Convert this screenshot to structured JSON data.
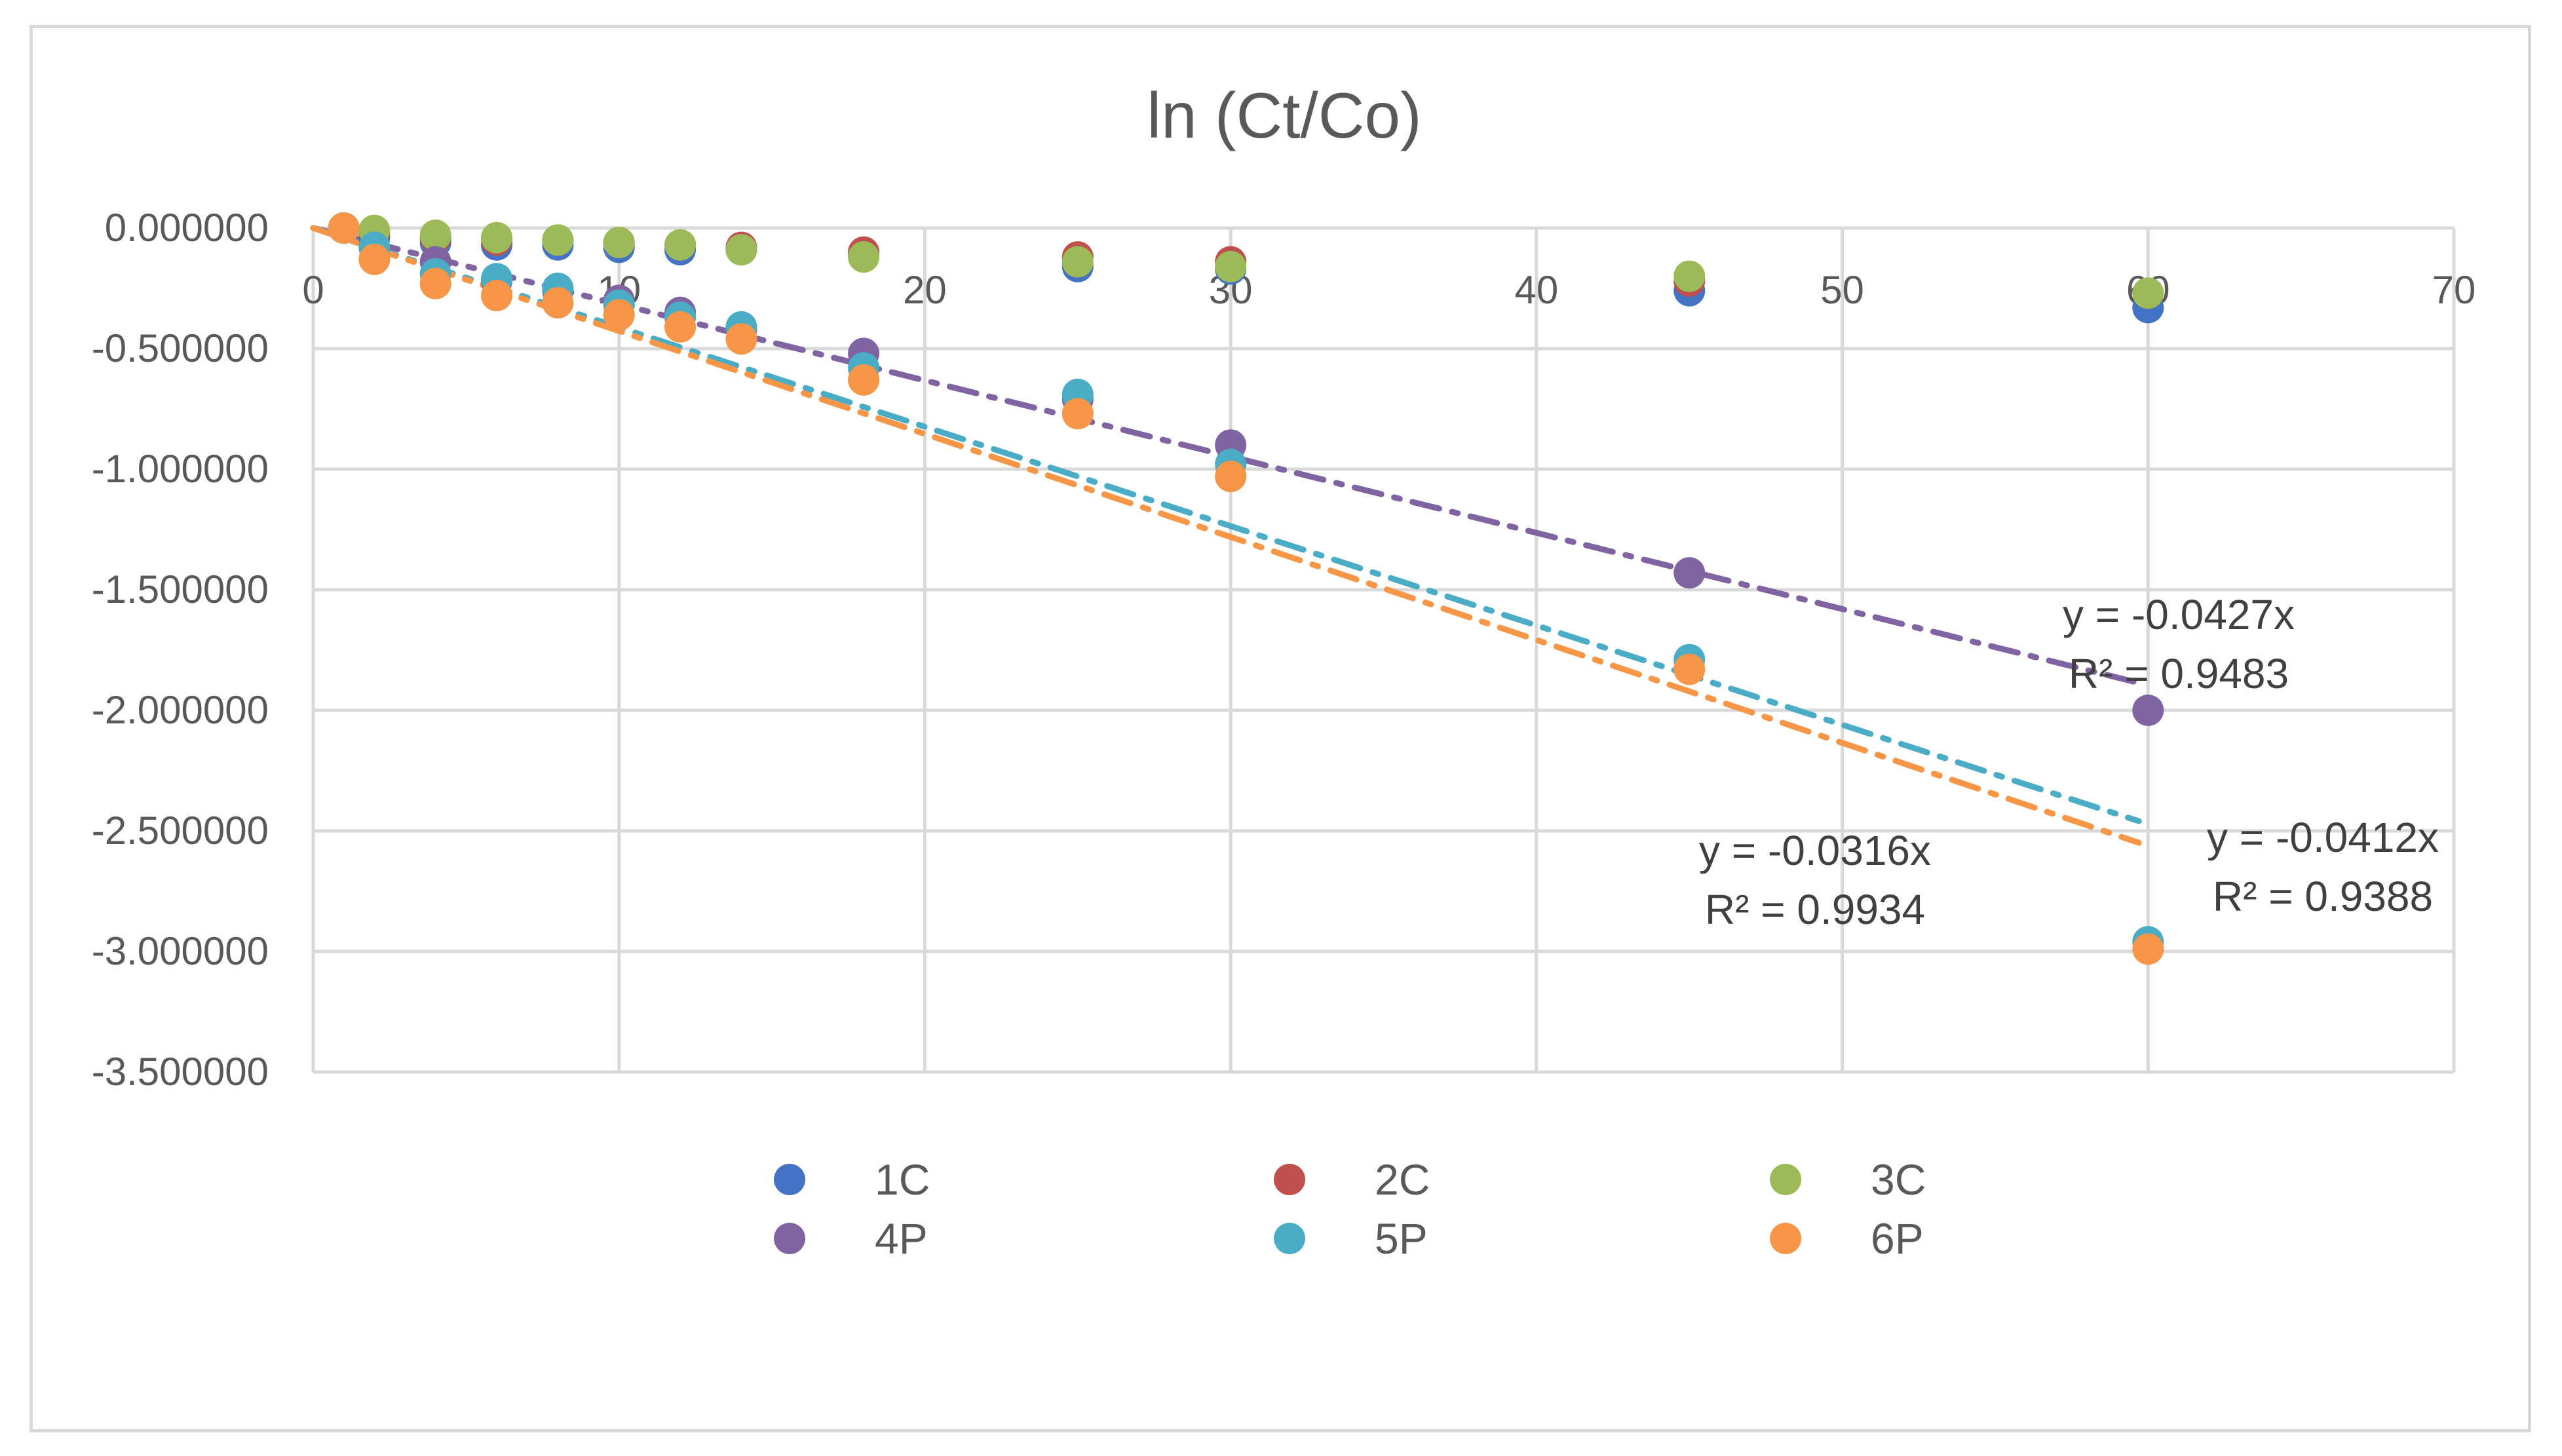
{
  "chart_data": {
    "type": "scatter",
    "title": "ln (Ct/Co)",
    "xlabel": "",
    "ylabel": "",
    "xlim": [
      0,
      70
    ],
    "ylim": [
      -3.5,
      0
    ],
    "x_ticks": [
      0,
      10,
      20,
      30,
      40,
      50,
      60,
      70
    ],
    "y_ticks": [
      0,
      -0.5,
      -1.0,
      -1.5,
      -2.0,
      -2.5,
      -3.0,
      -3.5
    ],
    "y_tick_labels": [
      "0.000000",
      "-0.500000",
      "-1.000000",
      "-1.500000",
      "-2.000000",
      "-2.500000",
      "-3.000000",
      "-3.500000"
    ],
    "grid": true,
    "legend_position": "bottom",
    "x": [
      1,
      2,
      4,
      6,
      8,
      10,
      12,
      14,
      18,
      25,
      30,
      45,
      60
    ],
    "series": [
      {
        "name": "1C",
        "color": "#4472C4",
        "values": [
          0,
          -0.04,
          -0.06,
          -0.07,
          -0.07,
          -0.08,
          -0.09,
          -0.09,
          -0.11,
          -0.16,
          -0.17,
          -0.26,
          -0.33
        ]
      },
      {
        "name": "2C",
        "color": "#C0504D",
        "values": [
          0,
          -0.02,
          -0.04,
          -0.05,
          -0.05,
          -0.06,
          -0.07,
          -0.08,
          -0.1,
          -0.12,
          -0.14,
          -0.22,
          -0.27
        ]
      },
      {
        "name": "3C",
        "color": "#9BBB59",
        "values": [
          0,
          -0.01,
          -0.03,
          -0.04,
          -0.05,
          -0.06,
          -0.07,
          -0.09,
          -0.12,
          -0.14,
          -0.16,
          -0.2,
          -0.27
        ]
      },
      {
        "name": "4P",
        "color": "#8064A2",
        "values": [
          0,
          -0.08,
          -0.14,
          -0.22,
          -0.26,
          -0.3,
          -0.35,
          -0.42,
          -0.52,
          -0.71,
          -0.9,
          -1.43,
          -2.0
        ]
      },
      {
        "name": "5P",
        "color": "#4BACC6",
        "values": [
          0,
          -0.08,
          -0.19,
          -0.21,
          -0.25,
          -0.32,
          -0.37,
          -0.41,
          -0.58,
          -0.69,
          -0.98,
          -1.79,
          -2.96
        ]
      },
      {
        "name": "6P",
        "color": "#F79646",
        "values": [
          0,
          -0.13,
          -0.23,
          -0.28,
          -0.31,
          -0.36,
          -0.41,
          -0.46,
          -0.63,
          -0.77,
          -1.03,
          -1.83,
          -2.99
        ]
      }
    ],
    "trendlines": [
      {
        "series": "4P",
        "slope": -0.0316,
        "equation": "y = -0.0316x",
        "r2": "R² = 0.9934",
        "x_range": [
          0,
          59.7
        ]
      },
      {
        "series": "5P",
        "slope": -0.0412,
        "equation": "y = -0.0412x",
        "r2": "R² = 0.9388",
        "x_range": [
          0,
          59.7
        ]
      },
      {
        "series": "6P",
        "slope": -0.0427,
        "equation": "y = -0.0427x",
        "r2": "R² = 0.9483",
        "x_range": [
          0,
          59.7
        ]
      }
    ]
  }
}
